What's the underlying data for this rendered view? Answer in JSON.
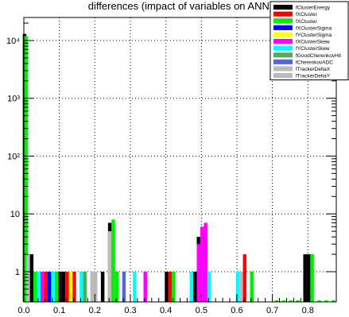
{
  "chart_data": {
    "type": "bar",
    "title": "differences (impact of variables on ANN)",
    "xlabel": "",
    "ylabel": "",
    "xlim": [
      0.0,
      0.88
    ],
    "ylim": [
      0.3,
      25000
    ],
    "y_scale": "log",
    "grid": true,
    "legend_position": "top-right",
    "x_ticks": [
      {
        "value": 0.0,
        "label": "0.0"
      },
      {
        "value": 0.1,
        "label": "0.1"
      },
      {
        "value": 0.2,
        "label": "0.2"
      },
      {
        "value": 0.3,
        "label": "0.3"
      },
      {
        "value": 0.4,
        "label": "0.4"
      },
      {
        "value": 0.5,
        "label": "0.5"
      },
      {
        "value": 0.6,
        "label": "0.6"
      },
      {
        "value": 0.7,
        "label": "0.7"
      },
      {
        "value": 0.8,
        "label": "0.8"
      }
    ],
    "y_ticks": [
      {
        "value": 1,
        "label": "1"
      },
      {
        "value": 10,
        "label": "10"
      },
      {
        "value": 100,
        "label": "10²"
      },
      {
        "value": 1000,
        "label": "10³"
      },
      {
        "value": 10000,
        "label": "10⁴"
      }
    ],
    "series": [
      {
        "name": "fClusterEnergy",
        "color": "#000000",
        "bins": [
          {
            "x": 0.002,
            "value": 13000
          },
          {
            "x": 0.012,
            "value": 2
          },
          {
            "x": 0.022,
            "value": 2
          },
          {
            "x": 0.102,
            "value": 1
          },
          {
            "x": 0.112,
            "value": 1
          },
          {
            "x": 0.222,
            "value": 1
          },
          {
            "x": 0.242,
            "value": 7
          },
          {
            "x": 0.402,
            "value": 1
          },
          {
            "x": 0.482,
            "value": 1
          },
          {
            "x": 0.492,
            "value": 4
          },
          {
            "x": 0.502,
            "value": 5
          },
          {
            "x": 0.792,
            "value": 2
          },
          {
            "x": 0.802,
            "value": 2
          }
        ]
      },
      {
        "name": "fXCluster",
        "color": "#ff0000",
        "bins": [
          {
            "x": 0.062,
            "value": 1
          },
          {
            "x": 0.122,
            "value": 1
          },
          {
            "x": 0.142,
            "value": 1
          },
          {
            "x": 0.412,
            "value": 1
          },
          {
            "x": 0.622,
            "value": 2
          }
        ]
      },
      {
        "name": "fXCluster",
        "color": "#00ee00",
        "bins": [
          {
            "x": 0.006,
            "value": 12000
          },
          {
            "x": 0.032,
            "value": 1
          },
          {
            "x": 0.092,
            "value": 1
          },
          {
            "x": 0.252,
            "value": 8
          },
          {
            "x": 0.262,
            "value": 1
          },
          {
            "x": 0.422,
            "value": 1
          },
          {
            "x": 0.512,
            "value": 1
          },
          {
            "x": 0.642,
            "value": 1
          },
          {
            "x": 0.812,
            "value": 2
          },
          {
            "x": 0.832,
            "value": 0.32
          },
          {
            "x": 0.852,
            "value": 0.32
          },
          {
            "x": 0.872,
            "value": 0.32
          },
          {
            "x": 0.712,
            "value": 0.32
          },
          {
            "x": 0.732,
            "value": 0.32
          },
          {
            "x": 0.752,
            "value": 0.32
          },
          {
            "x": 0.772,
            "value": 0.32
          }
        ]
      },
      {
        "name": "fXClusterSigma",
        "color": "#0000ff",
        "bins": [
          {
            "x": 0.072,
            "value": 1
          },
          {
            "x": 0.492,
            "value": 1
          }
        ]
      },
      {
        "name": "fYClusterSigma",
        "color": "#ffff00",
        "bins": [
          {
            "x": 0.132,
            "value": 1
          }
        ]
      },
      {
        "name": "fXClusterSkew",
        "color": "#ff00ff",
        "bins": [
          {
            "x": 0.052,
            "value": 1
          },
          {
            "x": 0.342,
            "value": 1
          },
          {
            "x": 0.492,
            "value": 3
          },
          {
            "x": 0.502,
            "value": 6
          },
          {
            "x": 0.512,
            "value": 7
          }
        ]
      },
      {
        "name": "fYClusterSkew",
        "color": "#00ffff",
        "bins": [
          {
            "x": 0.042,
            "value": 1
          },
          {
            "x": 0.082,
            "value": 1
          },
          {
            "x": 0.162,
            "value": 1
          },
          {
            "x": 0.312,
            "value": 1
          },
          {
            "x": 0.472,
            "value": 1
          },
          {
            "x": 0.522,
            "value": 1
          },
          {
            "x": 0.602,
            "value": 1
          }
        ]
      },
      {
        "name": "fGoodCherenkovHit",
        "color": "#55aa55",
        "bins": [
          {
            "x": 0.172,
            "value": 1
          }
        ]
      },
      {
        "name": "fCherenkovADC",
        "color": "#5566dd",
        "bins": [
          {
            "x": 0.282,
            "value": 1
          }
        ]
      },
      {
        "name": "fTrackerDeltaX",
        "color": "#bbbbbb",
        "bins": [
          {
            "x": 0.012,
            "value": 2
          },
          {
            "x": 0.192,
            "value": 1
          },
          {
            "x": 0.202,
            "value": 1
          },
          {
            "x": 0.242,
            "value": 5
          },
          {
            "x": 0.612,
            "value": 1
          }
        ]
      }
    ],
    "legend": [
      {
        "label": "fClusterEnergy",
        "color": "#000000"
      },
      {
        "label": "fXCluster",
        "color": "#ff0000"
      },
      {
        "label": "fXCluster",
        "color": "#00ee00"
      },
      {
        "label": "fXClusterSigma",
        "color": "#0000ff"
      },
      {
        "label": "fYClusterSigma",
        "color": "#ffff00"
      },
      {
        "label": "fXClusterSkew",
        "color": "#ff00ff"
      },
      {
        "label": "fYClusterSkew",
        "color": "#00ffff"
      },
      {
        "label": "fGoodCherenkovHit",
        "color": "#55aa55"
      },
      {
        "label": "fCherenkovADC",
        "color": "#5566dd"
      },
      {
        "label": "fTrackerDeltaX",
        "color": "#bbbbbb"
      },
      {
        "label": "fTrackerDeltaY",
        "color": "#bbbbbb"
      }
    ]
  }
}
